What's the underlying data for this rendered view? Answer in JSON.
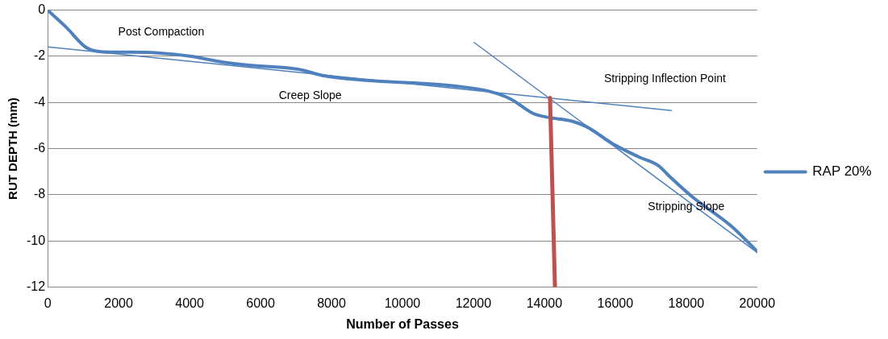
{
  "chart_data": {
    "type": "line",
    "xlabel": "Number of Passes",
    "ylabel": "RUT DEPTH (mm)",
    "xlim": [
      0,
      20000
    ],
    "xticks": [
      0,
      2000,
      4000,
      6000,
      8000,
      10000,
      12000,
      14000,
      16000,
      18000,
      20000
    ],
    "ylim": [
      -12,
      0
    ],
    "yticks": [
      -12,
      -10,
      -8,
      -6,
      -4,
      -2,
      0
    ],
    "grid": "y",
    "legend": "right",
    "marker": "none",
    "line_style": "solid",
    "series": [
      {
        "name": "RAP 20%",
        "color": "#4f81bd",
        "x": [
          0,
          530,
          1070,
          1500,
          2030,
          3100,
          4060,
          4810,
          5560,
          7060,
          7810,
          8980,
          10700,
          11550,
          12400,
          13050,
          13690,
          14120,
          14760,
          15190,
          15940,
          16680,
          17220,
          17540,
          18180,
          19250,
          20000
        ],
        "values": [
          0,
          -0.75,
          -1.6,
          -1.8,
          -1.82,
          -1.85,
          -2.0,
          -2.22,
          -2.37,
          -2.56,
          -2.85,
          -3.04,
          -3.19,
          -3.3,
          -3.5,
          -3.85,
          -4.48,
          -4.65,
          -4.8,
          -5.05,
          -5.8,
          -6.37,
          -6.74,
          -7.22,
          -8.1,
          -9.33,
          -10.45
        ]
      },
      {
        "color": "#4f81bd",
        "x": [
          0,
          17580
        ],
        "values": [
          -1.59,
          -4.35
        ]
      },
      {
        "color": "#4f81bd",
        "x": [
          12020,
          20000
        ],
        "values": [
          -1.4,
          -10.5
        ]
      },
      {
        "color": "#c0504d",
        "x": [
          14160,
          14300
        ],
        "values": [
          -3.8,
          -12
        ]
      }
    ],
    "annotations": [
      "Post Compaction",
      "Creep Slope",
      "Stripping Inflection Point",
      "Stripping Slope"
    ]
  }
}
